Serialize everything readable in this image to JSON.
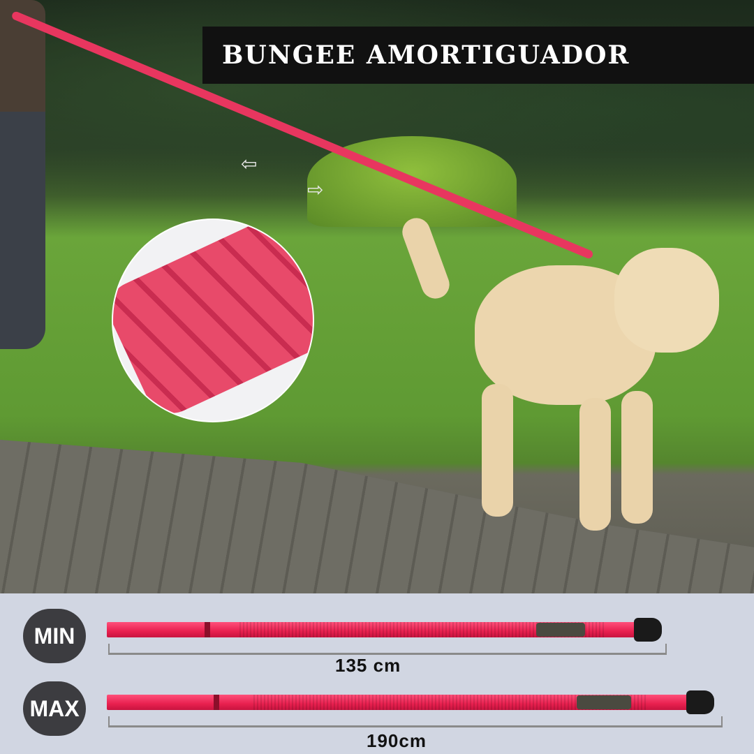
{
  "title": "BUNGEE AMORTIGUADOR",
  "sizes": [
    {
      "label": "MIN",
      "length": "135 cm"
    },
    {
      "label": "MAX",
      "length": "190cm"
    }
  ],
  "colors": {
    "leash": "#e8204f",
    "badge": "#3c3c40",
    "panel": "#d1d6e2",
    "title_bg": "#111111"
  },
  "icons": {
    "stretch_left": "arrow-left-icon",
    "stretch_right": "arrow-right-icon"
  }
}
